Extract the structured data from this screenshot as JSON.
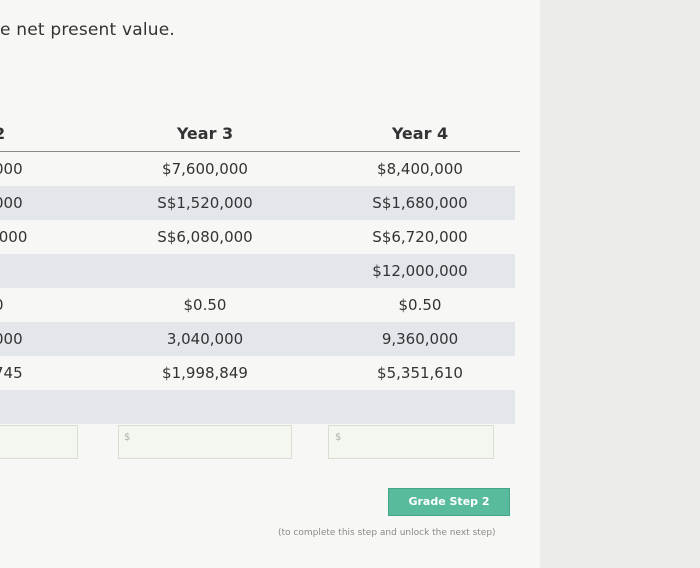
{
  "instruction": "e net present value.",
  "columns": {
    "year2": "2",
    "year3": "Year 3",
    "year4": "Year 4"
  },
  "rows": [
    {
      "c2": "000",
      "c3": "$7,600,000",
      "c4": "$8,400,000"
    },
    {
      "c2": "000",
      "c3": "S$1,520,000",
      "c4": "S$1,680,000"
    },
    {
      "c2": ".000",
      "c3": "S$6,080,000",
      "c4": "S$6,720,000"
    },
    {
      "c2": "",
      "c3": "",
      "c4": "$12,000,000"
    },
    {
      "c2": "0",
      "c3": "$0.50",
      "c4": "$0.50"
    },
    {
      "c2": "000",
      "c3": "3,040,000",
      "c4": "9,360,000"
    },
    {
      "c2": "745",
      "c3": "$1,998,849",
      "c4": "$5,351,610"
    },
    {
      "c2": "",
      "c3": "",
      "c4": ""
    }
  ],
  "inputs": {
    "currency_symbol": "$"
  },
  "actions": {
    "grade_label": "Grade Step 2",
    "grade_note": "(to complete this step and unlock the next step)"
  }
}
